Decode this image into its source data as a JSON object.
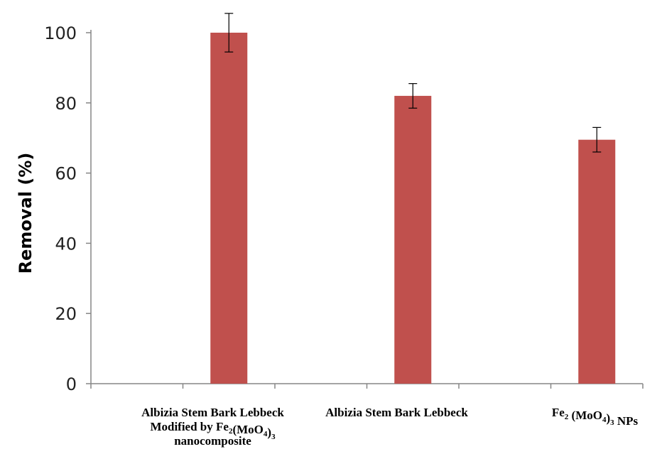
{
  "chart_data": {
    "type": "bar",
    "categories": [
      "Albizia Stem Bark Lebbeck Modified by Fe2(MoO4)3 nanocomposite",
      "Albizia Stem Bark Lebbeck",
      "Fe2 (MoO4)3 NPs"
    ],
    "values": [
      100,
      82,
      69.5
    ],
    "error": [
      5.5,
      3.5,
      3.5
    ],
    "ylabel": "Removal (%)",
    "xlabel": "",
    "ylim": [
      0,
      100
    ],
    "yticks": [
      0,
      20,
      40,
      60,
      80,
      100
    ],
    "grid": false,
    "legend": "none",
    "bar_color": "#c0504d",
    "axis_color": "#868686",
    "error_color": "#000000"
  }
}
